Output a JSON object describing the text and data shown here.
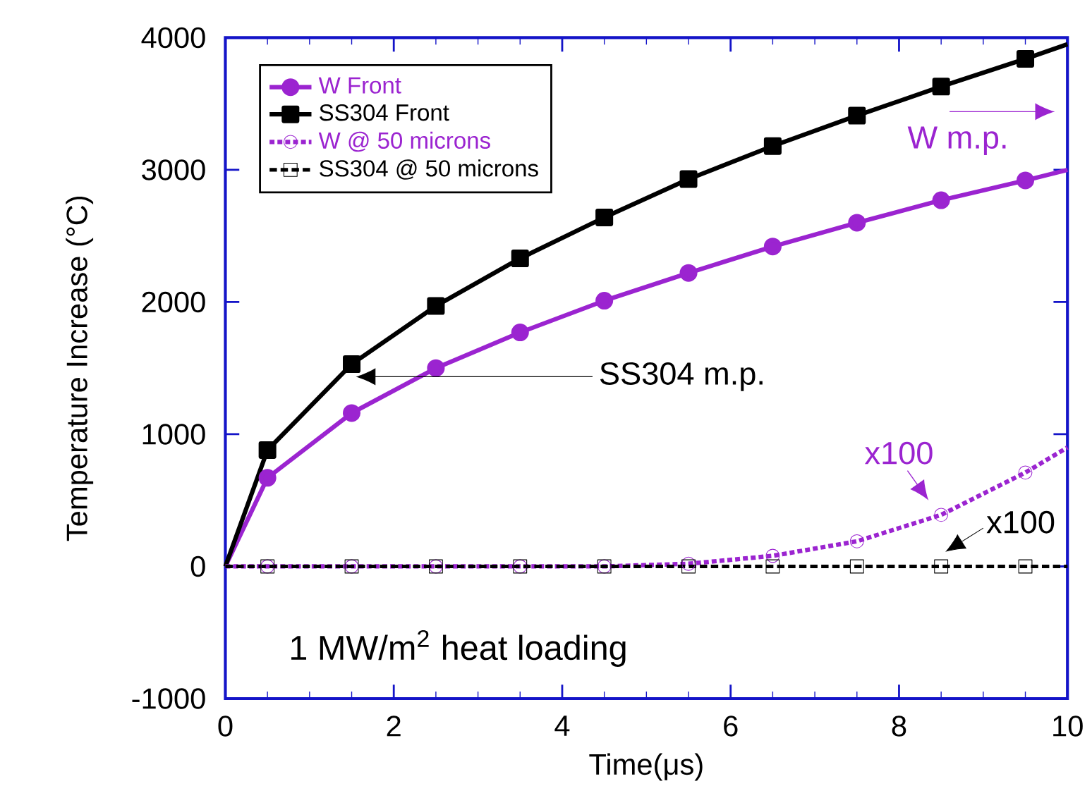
{
  "chart_data": {
    "type": "line",
    "xlabel": "Time(μs)",
    "ylabel": "Temperature Increase (°C)",
    "xlim": [
      0,
      10
    ],
    "ylim": [
      -1000,
      4000
    ],
    "xticks": [
      0,
      2,
      4,
      6,
      8,
      10
    ],
    "yticks": [
      -1000,
      0,
      1000,
      2000,
      3000,
      4000
    ],
    "legend": "top left",
    "grid": false,
    "series": [
      {
        "name": "W Front",
        "color": "#9b24d0",
        "marker": "circle",
        "line_style": "solid",
        "x": [
          0,
          0.5,
          1.5,
          2.5,
          3.5,
          4.5,
          5.5,
          6.5,
          7.5,
          8.5,
          9.5,
          10
        ],
        "values": [
          0,
          670,
          1160,
          1500,
          1770,
          2010,
          2220,
          2420,
          2600,
          2770,
          2920,
          3000
        ]
      },
      {
        "name": "SS304 Front",
        "color": "#000000",
        "marker": "square",
        "line_style": "solid",
        "x": [
          0,
          0.5,
          1.5,
          2.5,
          3.5,
          4.5,
          5.5,
          6.5,
          7.5,
          8.5,
          9.5,
          10
        ],
        "values": [
          0,
          880,
          1530,
          1970,
          2330,
          2640,
          2930,
          3180,
          3410,
          3630,
          3840,
          3950
        ]
      },
      {
        "name": "W @ 50 microns",
        "color": "#9b24d0",
        "marker": "circle",
        "line_style": "dotted",
        "x": [
          0,
          0.5,
          1.5,
          2.5,
          3.5,
          4.5,
          5.5,
          6.5,
          7.5,
          8.5,
          9.5,
          10
        ],
        "values": [
          0,
          0,
          0,
          0,
          0,
          0,
          20,
          80,
          190,
          390,
          710,
          900
        ]
      },
      {
        "name": "SS304 @ 50 microns",
        "color": "#000000",
        "marker": "square",
        "line_style": "dashed",
        "x": [
          0,
          0.5,
          1.5,
          2.5,
          3.5,
          4.5,
          5.5,
          6.5,
          7.5,
          8.5,
          9.5,
          10
        ],
        "values": [
          0,
          0,
          0,
          0,
          0,
          0,
          0,
          0,
          0,
          0,
          0,
          0
        ]
      }
    ],
    "annotations": [
      "W m.p.",
      "SS304 m.p.",
      "x100",
      "x100",
      "1 MW/m$^{2}$ heat loading"
    ]
  }
}
